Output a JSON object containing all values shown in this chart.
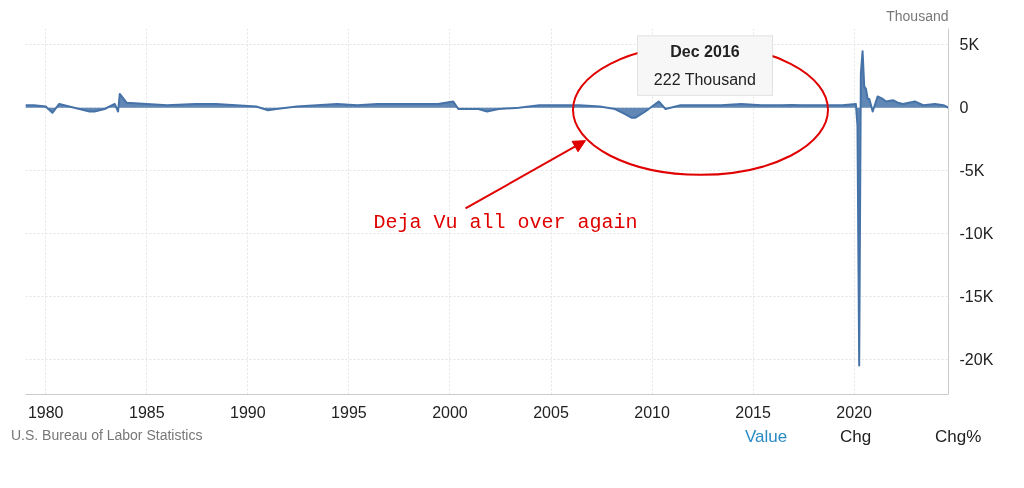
{
  "chart_data": {
    "type": "area",
    "ylabel": "Thousand",
    "color": "#4572a7",
    "x": [
      "1979-01",
      "1979-06",
      "1980-01",
      "1980-05",
      "1980-09",
      "1981-03",
      "1981-09",
      "1982-03",
      "1982-06",
      "1982-12",
      "1983-06",
      "1983-08",
      "1983-09",
      "1984-01",
      "1985-01",
      "1986-01",
      "1987-06",
      "1988-06",
      "1989-06",
      "1990-06",
      "1991-01",
      "1991-06",
      "1992-06",
      "1993-06",
      "1994-06",
      "1995-06",
      "1996-06",
      "1997-06",
      "1998-06",
      "1999-06",
      "2000-03",
      "2000-06",
      "2001-06",
      "2001-11",
      "2002-06",
      "2003-06",
      "2004-06",
      "2005-06",
      "2006-06",
      "2007-06",
      "2008-03",
      "2008-09",
      "2009-01",
      "2009-03",
      "2009-09",
      "2010-05",
      "2010-09",
      "2011-06",
      "2012-06",
      "2013-06",
      "2014-06",
      "2015-06",
      "2016-06",
      "2016-12",
      "2017-06",
      "2018-06",
      "2019-06",
      "2020-02",
      "2020-03",
      "2020-04",
      "2020-05",
      "2020-06",
      "2020-07",
      "2020-08",
      "2020-09",
      "2020-10",
      "2020-12",
      "2021-03",
      "2021-06",
      "2021-08",
      "2021-12",
      "2022-03",
      "2022-06",
      "2023-01",
      "2023-06",
      "2024-01",
      "2024-06",
      "2024-09"
    ],
    "values": [
      200,
      200,
      100,
      -400,
      300,
      100,
      -100,
      -300,
      -300,
      -100,
      300,
      -300,
      1100,
      400,
      300,
      200,
      300,
      300,
      200,
      100,
      -200,
      -100,
      100,
      200,
      300,
      200,
      300,
      300,
      300,
      300,
      500,
      -100,
      -100,
      -300,
      -100,
      0,
      200,
      200,
      200,
      100,
      -100,
      -500,
      -800,
      -800,
      -300,
      500,
      -100,
      200,
      200,
      200,
      300,
      200,
      200,
      222,
      200,
      200,
      200,
      300,
      -1400,
      -20500,
      2700,
      4500,
      1700,
      1500,
      700,
      700,
      -300,
      900,
      700,
      500,
      600,
      400,
      300,
      500,
      200,
      300,
      200,
      0
    ],
    "xlim": [
      "1979-01",
      "2024-09"
    ],
    "xticks": [
      {
        "value": "1980",
        "label": "1980"
      },
      {
        "value": "1985",
        "label": "1985"
      },
      {
        "value": "1990",
        "label": "1990"
      },
      {
        "value": "1995",
        "label": "1995"
      },
      {
        "value": "2000",
        "label": "2000"
      },
      {
        "value": "2005",
        "label": "2005"
      },
      {
        "value": "2010",
        "label": "2010"
      },
      {
        "value": "2015",
        "label": "2015"
      },
      {
        "value": "2020",
        "label": "2020"
      }
    ],
    "ylim": [
      -22800,
      6300
    ],
    "yticks": [
      {
        "value": 5000,
        "label": "5K"
      },
      0,
      {
        "value": -5000,
        "label": "-5K"
      },
      {
        "value": -10000,
        "label": "-10K"
      },
      {
        "value": -15000,
        "label": "-15K"
      },
      {
        "value": -20000,
        "label": "-20K"
      }
    ],
    "grid": true,
    "annotations": [
      "Dec 2016",
      "222 Thousand",
      "Deja Vu all over again",
      "U.S. Bureau of Labor Statistics",
      "Value",
      "Chg",
      "Chg%"
    ]
  }
}
